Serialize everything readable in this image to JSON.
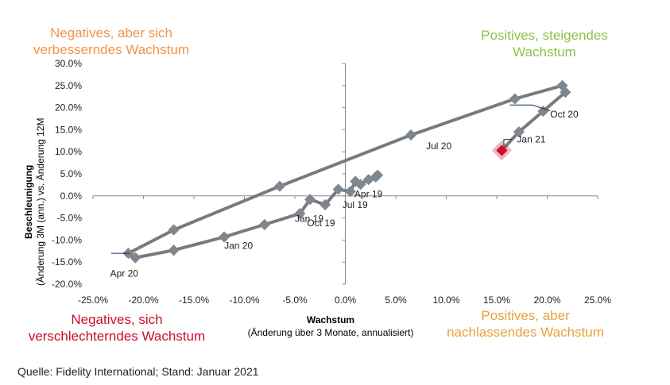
{
  "chart_data": {
    "type": "scatter",
    "title": "",
    "xlabel": "Wachstum",
    "xlabel_sub": "(Änderung über 3 Monate, annualisiert)",
    "ylabel": "Beschleunigung",
    "ylabel_sub": "(Änderung 3M (ann.) vs. Änderung 12M",
    "xlim": [
      -0.25,
      0.25
    ],
    "ylim": [
      -0.2,
      0.3
    ],
    "x_ticks": [
      -0.25,
      -0.2,
      -0.15,
      -0.1,
      -0.05,
      0.0,
      0.05,
      0.1,
      0.15,
      0.2,
      0.25
    ],
    "x_tick_labels": [
      "-25.0%",
      "-20.0%",
      "-15.0%",
      "-10.0%",
      "-5.0%",
      "0.0%",
      "5.0%",
      "10.0%",
      "15.0%",
      "20.0%",
      "25.0%"
    ],
    "y_ticks": [
      -0.2,
      -0.15,
      -0.1,
      -0.05,
      0.0,
      0.05,
      0.1,
      0.15,
      0.2,
      0.25,
      0.3
    ],
    "y_tick_labels": [
      "-20.0%",
      "-15.0%",
      "-10.0%",
      "-5.0%",
      "0.0%",
      "5.0%",
      "10.0%",
      "15.0%",
      "20.0%",
      "25.0%",
      "30.0%"
    ],
    "grid": false,
    "series": [
      {
        "color": "#7E8790",
        "line_color": "#7A7A7A",
        "points": [
          {
            "x": 0.032,
            "y": 0.047
          },
          {
            "x": 0.03,
            "y": 0.043
          },
          {
            "x": 0.023,
            "y": 0.037
          },
          {
            "x": 0.015,
            "y": 0.026
          },
          {
            "x": 0.01,
            "y": 0.033
          },
          {
            "x": 0.005,
            "y": 0.01
          },
          {
            "x": -0.007,
            "y": 0.015
          },
          {
            "x": -0.02,
            "y": -0.02
          },
          {
            "x": -0.035,
            "y": -0.008
          },
          {
            "x": -0.045,
            "y": -0.04
          },
          {
            "x": -0.08,
            "y": -0.065
          },
          {
            "x": -0.12,
            "y": -0.093
          },
          {
            "x": -0.17,
            "y": -0.123
          },
          {
            "x": -0.208,
            "y": -0.14
          },
          {
            "x": -0.215,
            "y": -0.13
          },
          {
            "x": -0.17,
            "y": -0.077
          },
          {
            "x": -0.065,
            "y": 0.022
          },
          {
            "x": 0.065,
            "y": 0.138
          },
          {
            "x": 0.168,
            "y": 0.22
          },
          {
            "x": 0.215,
            "y": 0.25
          },
          {
            "x": 0.218,
            "y": 0.235
          },
          {
            "x": 0.196,
            "y": 0.192
          },
          {
            "x": 0.172,
            "y": 0.145
          },
          {
            "x": 0.155,
            "y": 0.103
          }
        ]
      }
    ],
    "highlight": {
      "x": 0.155,
      "y": 0.103,
      "color": "#C8102E"
    },
    "annotations": [
      {
        "text": "Apr 19",
        "x": 0.009,
        "y": -0.003
      },
      {
        "text": "Jul 19",
        "x": -0.003,
        "y": -0.027
      },
      {
        "text": "Jan 19",
        "x": -0.05,
        "y": -0.059
      },
      {
        "text": "Oct 19",
        "x": -0.038,
        "y": -0.069
      },
      {
        "text": "Jan 20",
        "x": -0.12,
        "y": -0.12
      },
      {
        "text": "Apr 20",
        "x": -0.233,
        "y": -0.183
      },
      {
        "text": "Jul 20",
        "x": 0.08,
        "y": 0.106
      },
      {
        "text": "Oct 20",
        "x": 0.203,
        "y": 0.178
      },
      {
        "text": "Jan 21",
        "x": 0.17,
        "y": 0.121
      }
    ],
    "quadrants": {
      "top_left": "Negatives, aber sich verbesserndes Wachstum",
      "top_right": "Positives, steigendes Wachstum",
      "bottom_left": "Negatives, sich verschlechterndes Wachstum",
      "bottom_right": "Positives, aber nachlassendes Wachstum"
    }
  },
  "quadrant_labels": {
    "top_left_line1": "Negatives, aber sich",
    "top_left_line2": "verbesserndes Wachstum",
    "top_right_line1": "Positives, steigendes",
    "top_right_line2": "Wachstum",
    "bottom_left_line1": "Negatives, sich",
    "bottom_left_line2": "verschlechterndes Wachstum",
    "bottom_right_line1": "Positives, aber",
    "bottom_right_line2": "nachlassendes Wachstum"
  },
  "axis_titles": {
    "x_title": "Wachstum",
    "x_subtitle": "(Änderung über 3 Monate, annualisiert)",
    "y_title": "Beschleunigung",
    "y_subtitle": "(Änderung 3M (ann.) vs. Änderung 12M"
  },
  "source": "Quelle: Fidelity International; Stand: Januar 2021"
}
